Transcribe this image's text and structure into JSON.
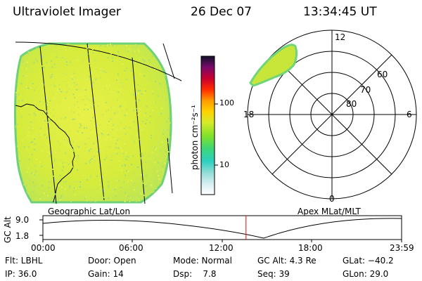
{
  "header": {
    "instrument": "Ultraviolet Imager",
    "date": "26 Dec 07",
    "time": "13:34:45 UT"
  },
  "colors": {
    "earth_base": "#d8ec3a",
    "earth_edge": "#7fd86a",
    "aurora": "#c8e63a",
    "timeline_marker": "#ff0000"
  },
  "colorbar": {
    "unit_label": "photon cm⁻²s⁻¹",
    "ticks": [
      "100",
      "10"
    ]
  },
  "geo_panel": {
    "label": "Geographic Lat/Lon"
  },
  "polar_panel": {
    "label": "Apex  MLat/MLT",
    "mlt_labels": {
      "top": "12",
      "left": "18",
      "right": "6",
      "bottom": "0"
    },
    "lat_labels": [
      "60",
      "70",
      "80"
    ]
  },
  "timeline": {
    "axis_label": "GC Alt",
    "y_ticks": [
      "9.0",
      "1.8"
    ],
    "x_ticks": [
      "00:00",
      "06:00",
      "12:00",
      "18:00",
      "23:59"
    ],
    "marker_time_hours": 13.58
  },
  "info": {
    "row1": {
      "flt": "Flt: LBHL",
      "door": "Door: Open",
      "mode": "Mode: Normal",
      "gc_alt": "GC Alt: 4.3 Re",
      "glat": "GLat: −40.2"
    },
    "row2": {
      "ip": "IP: 36.0",
      "gain": "Gain: 14",
      "dsp": "Dsp:    7.8",
      "seq": "Seq: 39",
      "glon": "GLon: 29.0"
    }
  }
}
